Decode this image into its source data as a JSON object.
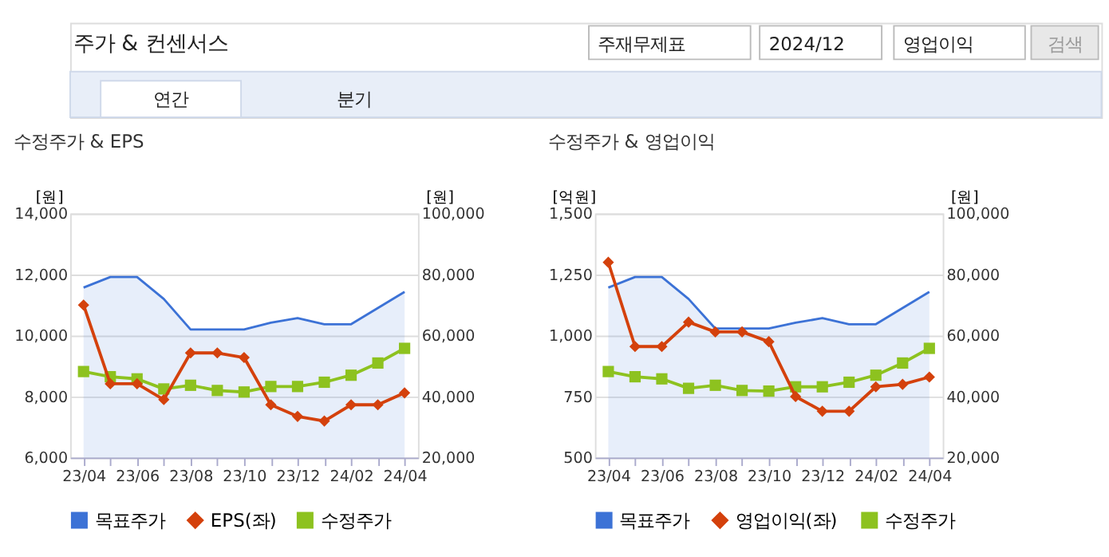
{
  "chart_data": [
    {
      "type": "other",
      "title": "주가 & 컨센서스",
      "annotations": [
        "주재무제표",
        "2024/12",
        "영업이익",
        "검색",
        "연간",
        "분기"
      ]
    },
    {
      "type": "line",
      "title": "수정주가 & EPS",
      "ylabel": "[원]",
      "y2label": "[원]",
      "categories": [
        "23/04",
        null,
        "23/06",
        null,
        "23/08",
        null,
        "23/10",
        null,
        "23/12",
        null,
        "24/02",
        null,
        "24/04"
      ],
      "series": [
        {
          "name": "목표주가",
          "type": "area",
          "axis": "y2",
          "color": "#3c72d6",
          "marker": "none",
          "values": [
            75700,
            79200,
            79200,
            72000,
            62000,
            62000,
            62000,
            64200,
            65700,
            63700,
            63700,
            69000,
            74300
          ]
        },
        {
          "name": "EPS(좌)",
          "type": "line",
          "color": "#d4410c",
          "marker": "diamond",
          "values": [
            11000,
            8420,
            8420,
            7900,
            9430,
            9430,
            9280,
            7730,
            7350,
            7200,
            7730,
            7730,
            8120
          ]
        },
        {
          "name": "수정주가",
          "type": "line",
          "axis": "y2",
          "color": "#8dc21f",
          "marker": "square",
          "values": [
            48200,
            46500,
            45800,
            42500,
            43700,
            42000,
            41500,
            43300,
            43300,
            44700,
            47000,
            51000,
            55800
          ]
        }
      ],
      "ylim": [
        6000,
        14000
      ],
      "yticks": [
        {
          "value": 6000,
          "label": "6,000"
        },
        {
          "value": 8000,
          "label": "8,000"
        },
        {
          "value": 10000,
          "label": "10,000"
        },
        {
          "value": 12000,
          "label": "12,000"
        },
        {
          "value": 14000,
          "label": "14,000"
        }
      ],
      "y2lim": [
        20000,
        100000
      ],
      "y2ticks": [
        {
          "value": 20000,
          "label": "20,000"
        },
        {
          "value": 40000,
          "label": "40,000"
        },
        {
          "value": 60000,
          "label": "60,000"
        },
        {
          "value": 80000,
          "label": "80,000"
        },
        {
          "value": 100000,
          "label": "100,000"
        }
      ],
      "grid": "y",
      "legend": "bottom"
    },
    {
      "type": "line",
      "title": "수정주가 & 영업이익",
      "ylabel": "[억원]",
      "y2label": "[원]",
      "categories": [
        "23/04",
        null,
        "23/06",
        null,
        "23/08",
        null,
        "23/10",
        null,
        "23/12",
        null,
        "24/02",
        null,
        "24/04"
      ],
      "series": [
        {
          "name": "목표주가",
          "type": "area",
          "axis": "y2",
          "color": "#3c72d6",
          "marker": "none",
          "values": [
            75700,
            79200,
            79200,
            72000,
            62300,
            62300,
            62300,
            64200,
            65700,
            63700,
            63700,
            69000,
            74300
          ]
        },
        {
          "name": "영업이익(좌)",
          "type": "line",
          "color": "#d4410c",
          "marker": "diamond",
          "values": [
            1300,
            955,
            955,
            1055,
            1015,
            1015,
            975,
            750,
            690,
            690,
            790,
            800,
            830
          ]
        },
        {
          "name": "수정주가",
          "type": "line",
          "axis": "y2",
          "color": "#8dc21f",
          "marker": "square",
          "values": [
            48200,
            46500,
            45800,
            42700,
            43700,
            42000,
            41800,
            43200,
            43200,
            44700,
            47000,
            51000,
            55800
          ]
        }
      ],
      "ylim": [
        500,
        1500
      ],
      "yticks": [
        500,
        750,
        {
          "value": 1000,
          "label": "1,000"
        },
        {
          "value": 1250,
          "label": "1,250"
        },
        {
          "value": 1500,
          "label": "1,500"
        }
      ],
      "y2lim": [
        20000,
        100000
      ],
      "y2ticks": [
        {
          "value": 20000,
          "label": "20,000"
        },
        {
          "value": 40000,
          "label": "40,000"
        },
        {
          "value": 60000,
          "label": "60,000"
        },
        {
          "value": 80000,
          "label": "80,000"
        },
        {
          "value": 100000,
          "label": "100,000"
        }
      ],
      "grid": "y",
      "legend": "bottom"
    }
  ]
}
